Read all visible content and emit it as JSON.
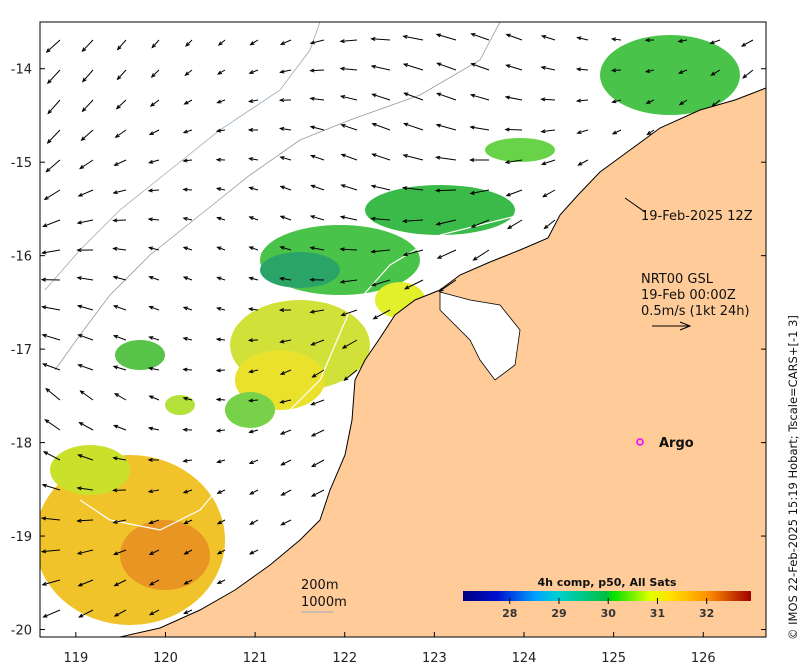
{
  "map": {
    "lon_ticks": [
      119,
      120,
      121,
      122,
      123,
      124,
      125,
      126
    ],
    "lat_ticks": [
      -14,
      -15,
      -16,
      -17,
      -18,
      -19,
      -20
    ],
    "lon_range": [
      118.6,
      126.7
    ],
    "lat_range": [
      -20.08,
      -13.5
    ],
    "colors": {
      "land": "#ffcc99",
      "ocean": "#ffffff",
      "argo": "#ff00ff"
    }
  },
  "annotations": {
    "track_time": "19-Feb-2025 12Z",
    "current_source": "NRT00 GSL",
    "current_time": "19-Feb 00:00Z",
    "current_scale": "0.5m/s (1kt 24h)",
    "argo_label": "Argo",
    "depth_200": "200m",
    "depth_1000": "1000m"
  },
  "colorbar": {
    "title": "4h comp, p50, All Sats",
    "ticks": [
      28,
      29,
      30,
      31,
      32
    ],
    "range": [
      27.05,
      32.9
    ]
  },
  "credit": "© IMOS 22-Feb-2025 15:19 Hobart; Tscale=CARS+[-1 3]"
}
